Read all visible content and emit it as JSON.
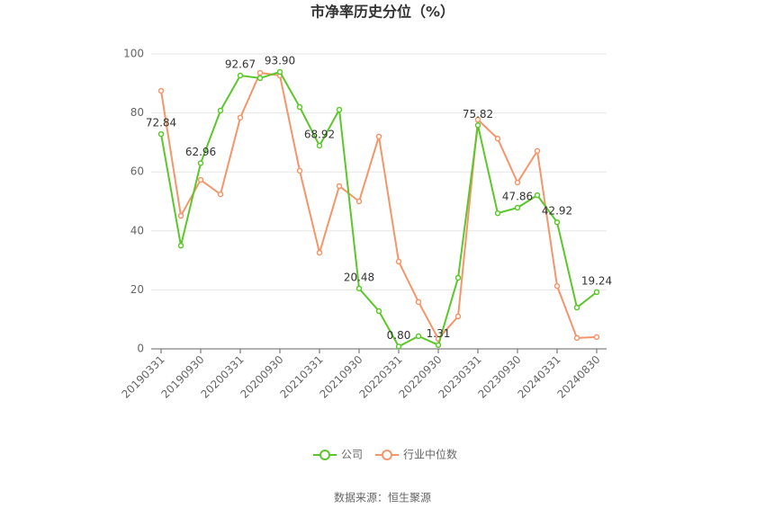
{
  "chart_data": {
    "type": "line",
    "title": "市净率历史分位（%）",
    "source": "数据来源：恒生聚源",
    "categories": [
      "20190331",
      null,
      "20190930",
      null,
      "20200331",
      null,
      "20200930",
      null,
      "20210331",
      null,
      "20210930",
      null,
      "20220331",
      null,
      "20220930",
      null,
      "20230331",
      null,
      "20230930",
      null,
      "20240331",
      null,
      "20240830"
    ],
    "series": [
      {
        "name": "公司",
        "color": "#5cc72a",
        "values": [
          72.84,
          35,
          62.96,
          80.8,
          92.67,
          91.8,
          93.9,
          82,
          68.92,
          81.1,
          20.48,
          12.8,
          0.8,
          4.3,
          1.31,
          24.1,
          75.82,
          46,
          47.86,
          52.1,
          42.92,
          14,
          19.24
        ],
        "value_labels": [
          "72.84",
          null,
          "62.96",
          null,
          "92.67",
          null,
          "93.90",
          null,
          "68.92",
          null,
          "20.48",
          null,
          "0.80",
          null,
          "1.31",
          null,
          "75.82",
          null,
          "47.86",
          null,
          "42.92",
          null,
          "19.24"
        ]
      },
      {
        "name": "行业中位数",
        "color": "#f5956a",
        "values": [
          87.5,
          45.1,
          57.3,
          52.4,
          78.4,
          93.6,
          92.7,
          60.4,
          32.6,
          55.2,
          50,
          72,
          29.6,
          15.9,
          3.4,
          11,
          77.7,
          71.3,
          56.4,
          67.1,
          21.3,
          3.7,
          4
        ]
      }
    ],
    "ylim": [
      0,
      100
    ],
    "yticks": [
      0,
      20,
      40,
      60,
      80,
      100
    ],
    "grid": true,
    "legend": "bottom"
  }
}
